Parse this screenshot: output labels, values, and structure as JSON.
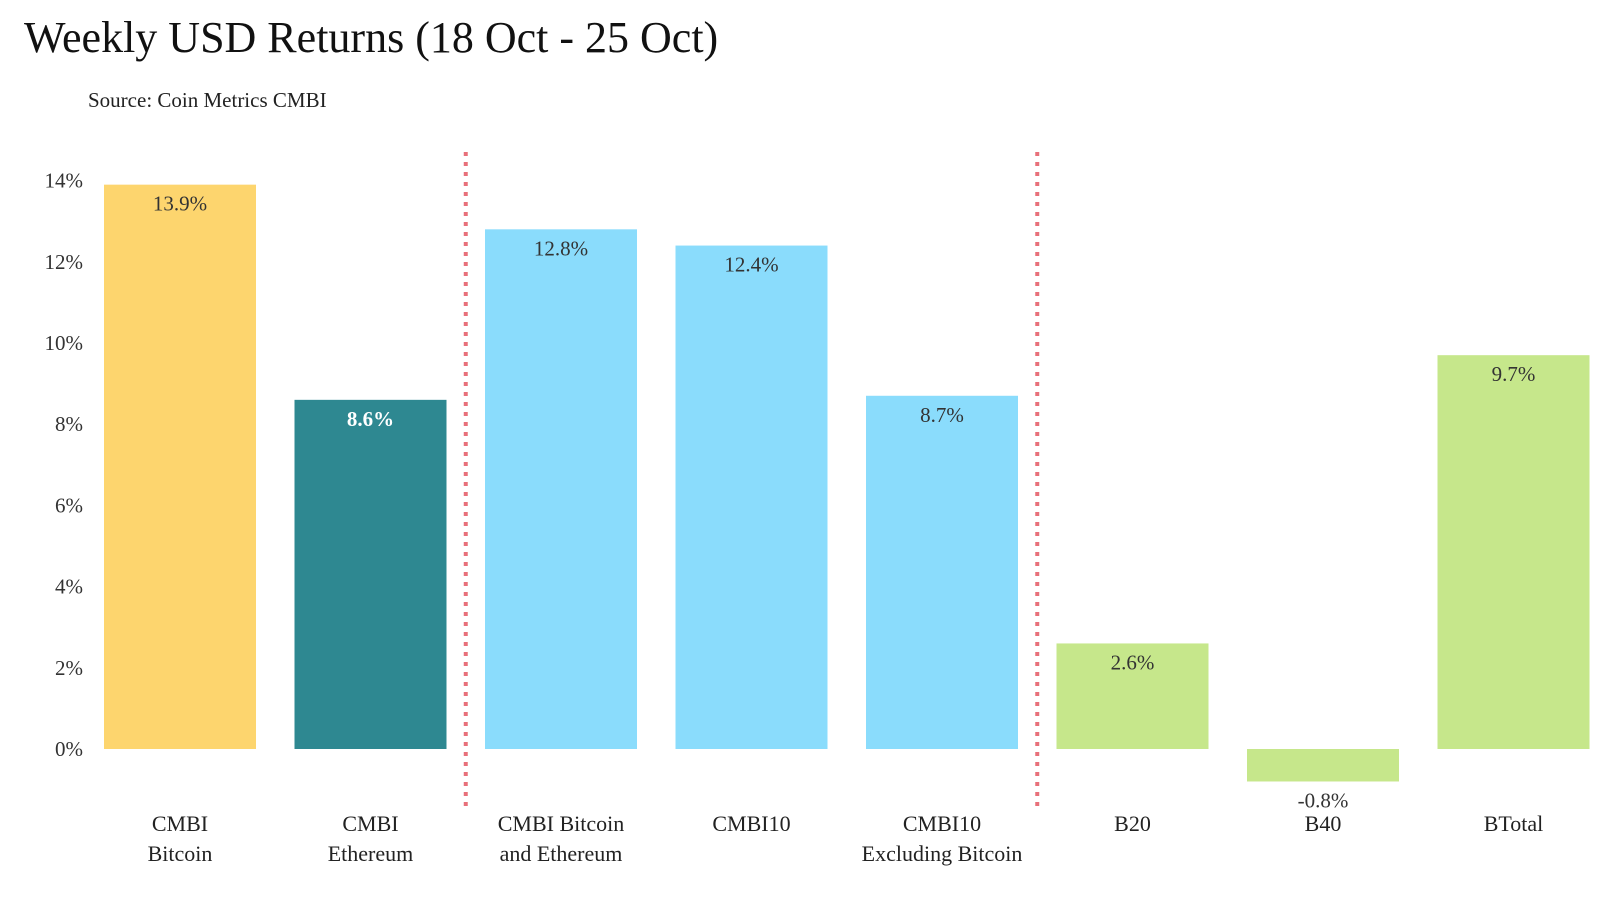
{
  "header": {
    "title": "Weekly USD Returns (18 Oct - 25 Oct)",
    "subtitle": "Source: Coin Metrics CMBI"
  },
  "chart_data": {
    "type": "bar",
    "title": "Weekly USD Returns (18 Oct - 25 Oct)",
    "subtitle": "Source: Coin Metrics CMBI",
    "xlabel": "",
    "ylabel": "",
    "ylim": [
      -2,
      14
    ],
    "yticks": [
      0,
      2,
      4,
      6,
      8,
      10,
      12,
      14
    ],
    "ytick_labels": [
      "0%",
      "2%",
      "4%",
      "6%",
      "8%",
      "10%",
      "12%",
      "14%"
    ],
    "grid": false,
    "legend": "none",
    "categories": [
      [
        "CMBI",
        "Bitcoin"
      ],
      [
        "CMBI",
        "Ethereum"
      ],
      [
        "CMBI Bitcoin",
        "and Ethereum"
      ],
      [
        "CMBI10"
      ],
      [
        "CMBI10",
        "Excluding Bitcoin"
      ],
      [
        "B20"
      ],
      [
        "B40"
      ],
      [
        "BTotal"
      ]
    ],
    "values": [
      13.9,
      8.6,
      12.8,
      12.4,
      8.7,
      2.6,
      -0.8,
      9.7
    ],
    "value_labels": [
      "13.9%",
      "8.6%",
      "12.8%",
      "12.4%",
      "8.7%",
      "2.6%",
      "-0.8%",
      "9.7%"
    ],
    "colors": [
      "#FDD56E",
      "#2E8891",
      "#8ADCFC",
      "#8ADCFC",
      "#8ADCFC",
      "#C6E78B",
      "#C6E78B",
      "#C6E78B"
    ],
    "value_label_colors": [
      "#333333",
      "#ffffff",
      "#333333",
      "#333333",
      "#333333",
      "#333333",
      "#333333",
      "#333333"
    ],
    "value_label_bold": [
      false,
      true,
      false,
      false,
      false,
      false,
      false,
      false
    ],
    "separators_after_index": [
      1,
      4
    ],
    "separator_color": "#E8707A"
  }
}
